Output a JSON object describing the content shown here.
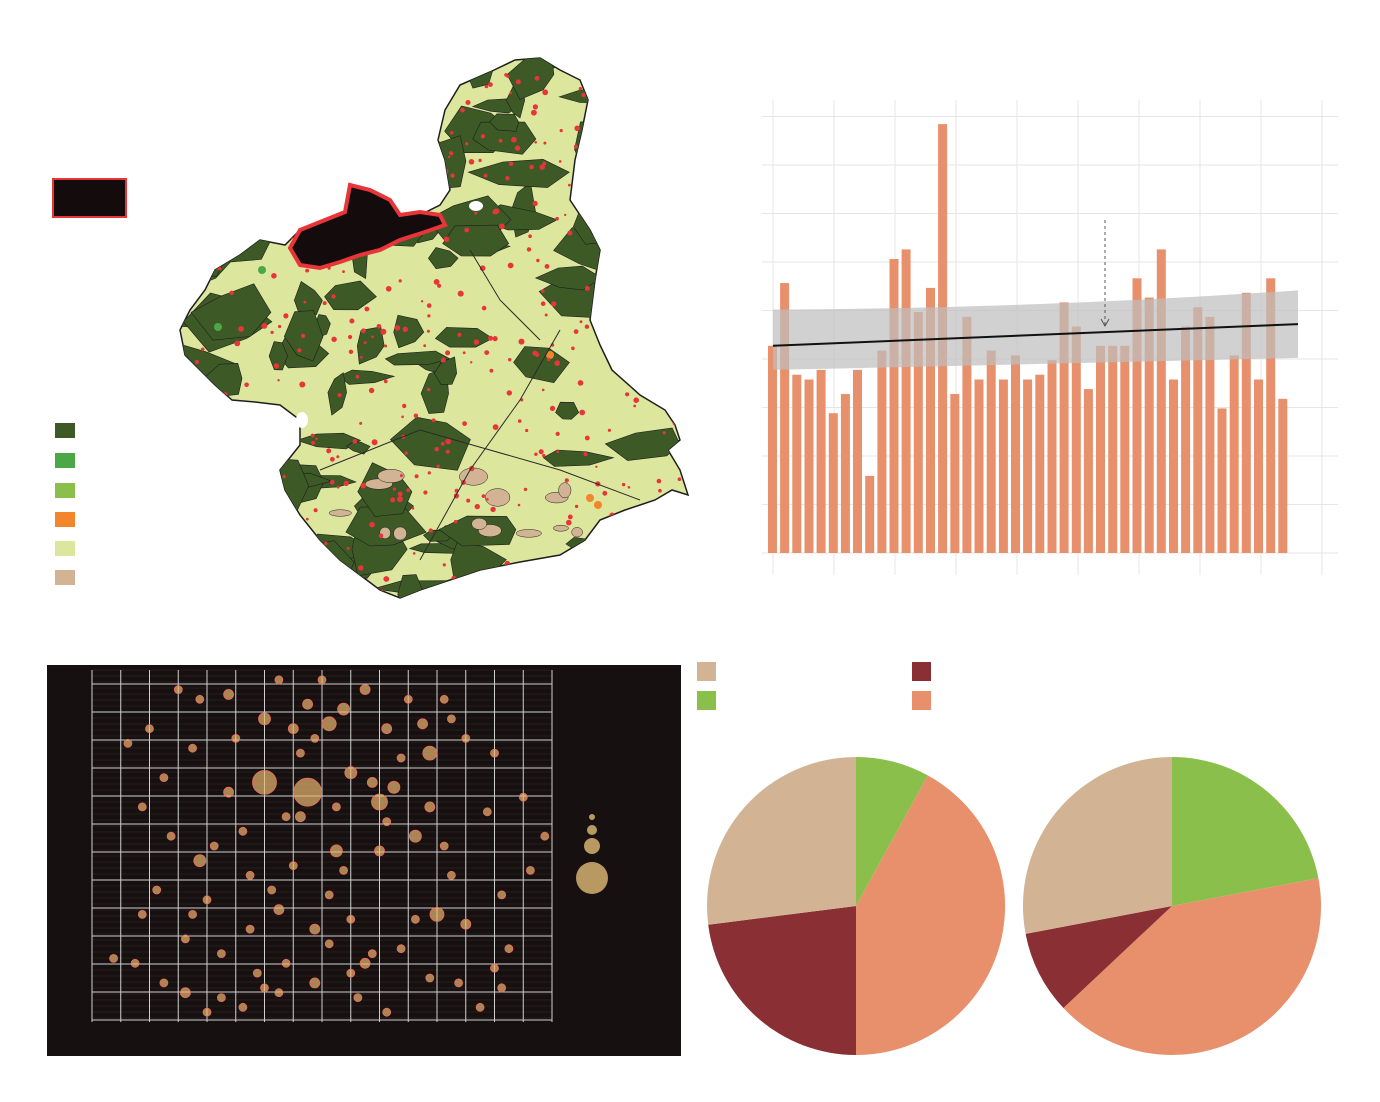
{
  "colors": {
    "bar": "#E8906C",
    "trend": "#111111",
    "ci_band": "#BDBDBD",
    "grid": "#E6E6E6",
    "panel_bg": "#161010",
    "burned": "#E8353A",
    "water": "#140C0C",
    "forest_dark": "#3D5A26",
    "forest": "#4AA847",
    "shrub": "#8BBF4C",
    "orange": "#F3852A",
    "crop": "#DCE69C",
    "bare": "#D2B495",
    "pie_tan": "#D2B495",
    "pie_green": "#8BBF4C",
    "pie_maroon": "#8A3034",
    "pie_salmon": "#E8906C",
    "bubble": "#E8B870"
  },
  "map_legend": {
    "swatches": [
      {
        "id": "dark-forest",
        "color": "#3D5A26"
      },
      {
        "id": "forest",
        "color": "#4AA847"
      },
      {
        "id": "shrubland",
        "color": "#8BBF4C"
      },
      {
        "id": "orange-class",
        "color": "#F3852A"
      },
      {
        "id": "cropland",
        "color": "#DCE69C"
      },
      {
        "id": "bare",
        "color": "#D2B495"
      }
    ],
    "fire_swatch": {
      "fill": "#140C0C",
      "border": "#E8353A"
    }
  },
  "chart_data": [
    {
      "type": "bar",
      "values": [
        43,
        56,
        37,
        36,
        38,
        29,
        33,
        38,
        16,
        42,
        61,
        63,
        50,
        55,
        89,
        33,
        49,
        36,
        42,
        36,
        41,
        36,
        37,
        40,
        52,
        47,
        34,
        43,
        43,
        43,
        57,
        53,
        63,
        36,
        47,
        51,
        49,
        30,
        41,
        54,
        36,
        57,
        32
      ],
      "trend": {
        "start": 43,
        "end": 47.5
      },
      "ci_band": {
        "start": [
          38,
          50.5
        ],
        "mid": [
          40,
          49.5
        ],
        "end": [
          40.5,
          54.5
        ]
      },
      "ylim": [
        0,
        94
      ],
      "grid": true,
      "annotation_arrow_bar_index": 27
    },
    {
      "type": "scatter",
      "grid": true,
      "points": [
        [
          54,
          3,
          4
        ],
        [
          57,
          7,
          4
        ],
        [
          56,
          11,
          4
        ],
        [
          52,
          20,
          5
        ],
        [
          48,
          22,
          7
        ],
        [
          50,
          30,
          4
        ],
        [
          33,
          26,
          4
        ],
        [
          34,
          35,
          6
        ],
        [
          29,
          42,
          5
        ],
        [
          30,
          47,
          14
        ],
        [
          24,
          49,
          12
        ],
        [
          42,
          48,
          6
        ],
        [
          40,
          45,
          8
        ],
        [
          40,
          35,
          5
        ],
        [
          39,
          14,
          4
        ],
        [
          38,
          12,
          5
        ],
        [
          36,
          10,
          4
        ],
        [
          27,
          12,
          4
        ],
        [
          24,
          7,
          4
        ],
        [
          21,
          3,
          4
        ],
        [
          15,
          33,
          6
        ],
        [
          14,
          22,
          4
        ],
        [
          9,
          27,
          4
        ],
        [
          7,
          22,
          4
        ],
        [
          6,
          12,
          4
        ],
        [
          10,
          8,
          4
        ],
        [
          13,
          6,
          5
        ],
        [
          18,
          5,
          4
        ],
        [
          26,
          6,
          4
        ],
        [
          31,
          8,
          5
        ],
        [
          19,
          47,
          5
        ],
        [
          17,
          36,
          4
        ],
        [
          22,
          30,
          4
        ],
        [
          28,
          32,
          4
        ],
        [
          35,
          31,
          4
        ],
        [
          45,
          38,
          6
        ],
        [
          47,
          44,
          5
        ],
        [
          25,
          27,
          4
        ],
        [
          26,
          23,
          5
        ],
        [
          29,
          55,
          4
        ],
        [
          33,
          61,
          7
        ],
        [
          35,
          64,
          6
        ],
        [
          41,
          60,
          5
        ],
        [
          47,
          55,
          7
        ],
        [
          52,
          58,
          4
        ],
        [
          44,
          66,
          4
        ],
        [
          38,
          68,
          5
        ],
        [
          32,
          70,
          4
        ],
        [
          19,
          67,
          5
        ],
        [
          15,
          66,
          4
        ],
        [
          12,
          68,
          4
        ],
        [
          8,
          60,
          4
        ],
        [
          5,
          57,
          4
        ],
        [
          10,
          50,
          4
        ],
        [
          14,
          56,
          4
        ],
        [
          20,
          58,
          4
        ],
        [
          24,
          62,
          6
        ],
        [
          30,
          65,
          5
        ],
        [
          56,
          55,
          4
        ],
        [
          60,
          46,
          4
        ],
        [
          63,
          38,
          4
        ],
        [
          61,
          31,
          4
        ],
        [
          57,
          26,
          4
        ],
        [
          45,
          21,
          4
        ],
        [
          43,
          15,
          4
        ],
        [
          47,
          9,
          4
        ],
        [
          51,
          8,
          4
        ],
        [
          13,
          17,
          4
        ],
        [
          3,
          13,
          4
        ],
        [
          16,
          2,
          4
        ],
        [
          33,
          16,
          4
        ],
        [
          31,
          19,
          5
        ],
        [
          36,
          21,
          4
        ],
        [
          18,
          14,
          4
        ],
        [
          22,
          19,
          4
        ],
        [
          27,
          42,
          4
        ],
        [
          21,
          39,
          4
        ],
        [
          11,
          38,
          4
        ],
        [
          7,
          44,
          4
        ],
        [
          41,
          41,
          4
        ],
        [
          49,
          36,
          4
        ],
        [
          55,
          43,
          4
        ],
        [
          58,
          15,
          4
        ],
        [
          37,
          5,
          4
        ],
        [
          41,
          2,
          4
        ],
        [
          50,
          62,
          4
        ],
        [
          26,
          70,
          4
        ],
        [
          31,
          58,
          4
        ],
        [
          36,
          51,
          6
        ],
        [
          28,
          60,
          5
        ],
        [
          16,
          25,
          4
        ],
        [
          23,
          10,
          4
        ],
        [
          34,
          44,
          4
        ],
        [
          39,
          49,
          5
        ],
        [
          43,
          54,
          4
        ],
        [
          46,
          61,
          5
        ],
        [
          49,
          66,
          4
        ]
      ]
    },
    {
      "type": "pie",
      "values": [
        8,
        42,
        23,
        27
      ],
      "colors": [
        "#8BBF4C",
        "#E8906C",
        "#8A3034",
        "#D2B495"
      ]
    },
    {
      "type": "pie",
      "values": [
        22,
        41,
        9,
        28
      ],
      "colors": [
        "#8BBF4C",
        "#E8906C",
        "#8A3034",
        "#D2B495"
      ]
    }
  ],
  "pie_legend": [
    {
      "id": "tan",
      "color": "#D2B495"
    },
    {
      "id": "maroon",
      "color": "#8A3034"
    },
    {
      "id": "green",
      "color": "#8BBF4C"
    },
    {
      "id": "salmon",
      "color": "#E8906C"
    }
  ],
  "bubble_size_legend": [
    3,
    5,
    8,
    16
  ]
}
